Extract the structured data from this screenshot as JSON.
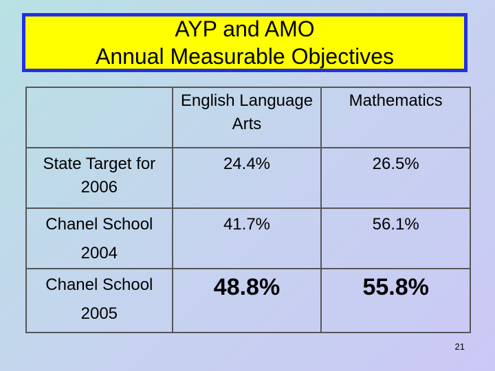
{
  "slide": {
    "title_line1": "AYP and AMO",
    "title_line2": "Annual Measurable Objectives",
    "page_number": "21"
  },
  "table": {
    "headers": [
      "",
      "English Language Arts",
      "Mathematics"
    ],
    "rows": [
      {
        "label": "State Target for 2006",
        "ela": "24.4%",
        "math": "26.5%"
      },
      {
        "label": "Chanel School 2004",
        "ela": "41.7%",
        "math": "56.1%"
      },
      {
        "label": "Chanel School 2005",
        "ela": "48.8%",
        "math": "55.8%"
      }
    ]
  },
  "colors": {
    "title_background": "#ffff00",
    "title_border": "#2330e6"
  }
}
